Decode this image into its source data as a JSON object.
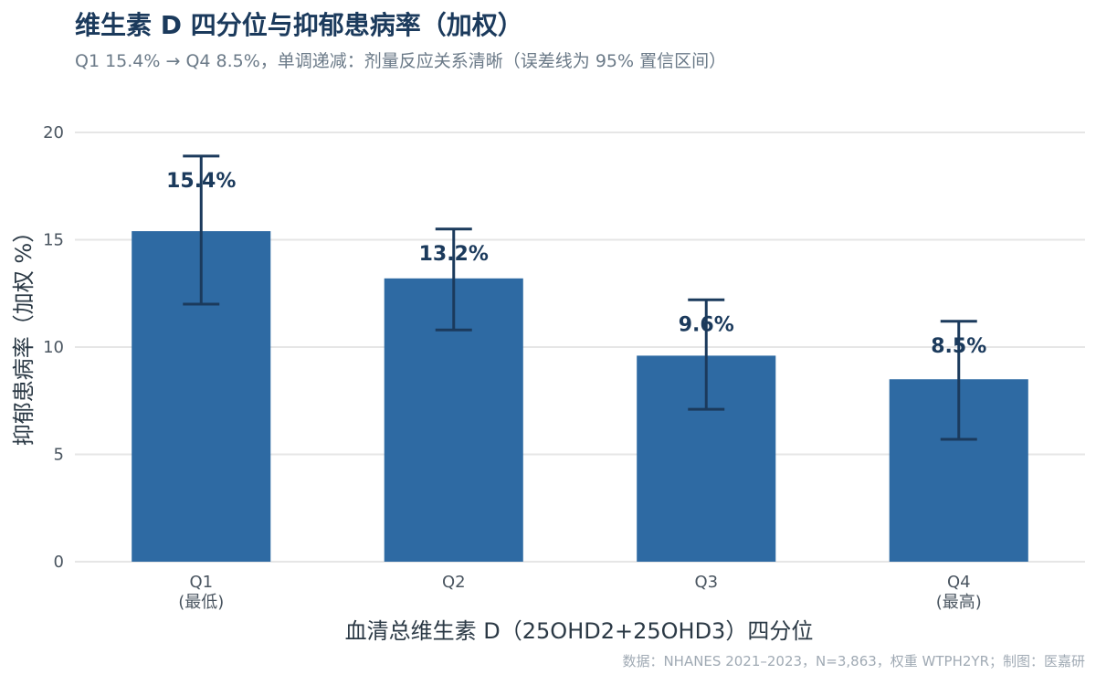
{
  "title": "维生素 D 四分位与抑郁患病率（加权）",
  "subtitle": "Q1 15.4% → Q4 8.5%，单调递减：剂量反应关系清晰（误差线为 95% 置信区间）",
  "source": "数据：NHANES 2021–2023，N=3,863，权重 WTPH2YR；制图：医嘉研",
  "colors": {
    "bar": "#2e6aa3",
    "error_bar": "#1b3a5c",
    "grid": "#e6e6e6",
    "label": "#1b3a5c"
  },
  "chart_data": {
    "type": "bar",
    "title": "维生素 D 四分位与抑郁患病率（加权）",
    "xlabel": "血清总维生素 D（25OHD2+25OHD3）四分位",
    "ylabel": "抑郁患病率（加权 %）",
    "ylim": [
      0,
      20
    ],
    "yticks": [
      0,
      5,
      10,
      15,
      20
    ],
    "grid": true,
    "categories": [
      "Q1",
      "Q2",
      "Q3",
      "Q4"
    ],
    "category_sublabels": [
      "(最低)",
      "",
      "",
      "(最高)"
    ],
    "values": [
      15.4,
      13.2,
      9.6,
      8.5
    ],
    "value_labels": [
      "15.4%",
      "13.2%",
      "9.6%",
      "8.5%"
    ],
    "ci_lower": [
      12.0,
      10.8,
      7.1,
      5.7
    ],
    "ci_upper": [
      18.9,
      15.5,
      12.2,
      11.2
    ]
  }
}
